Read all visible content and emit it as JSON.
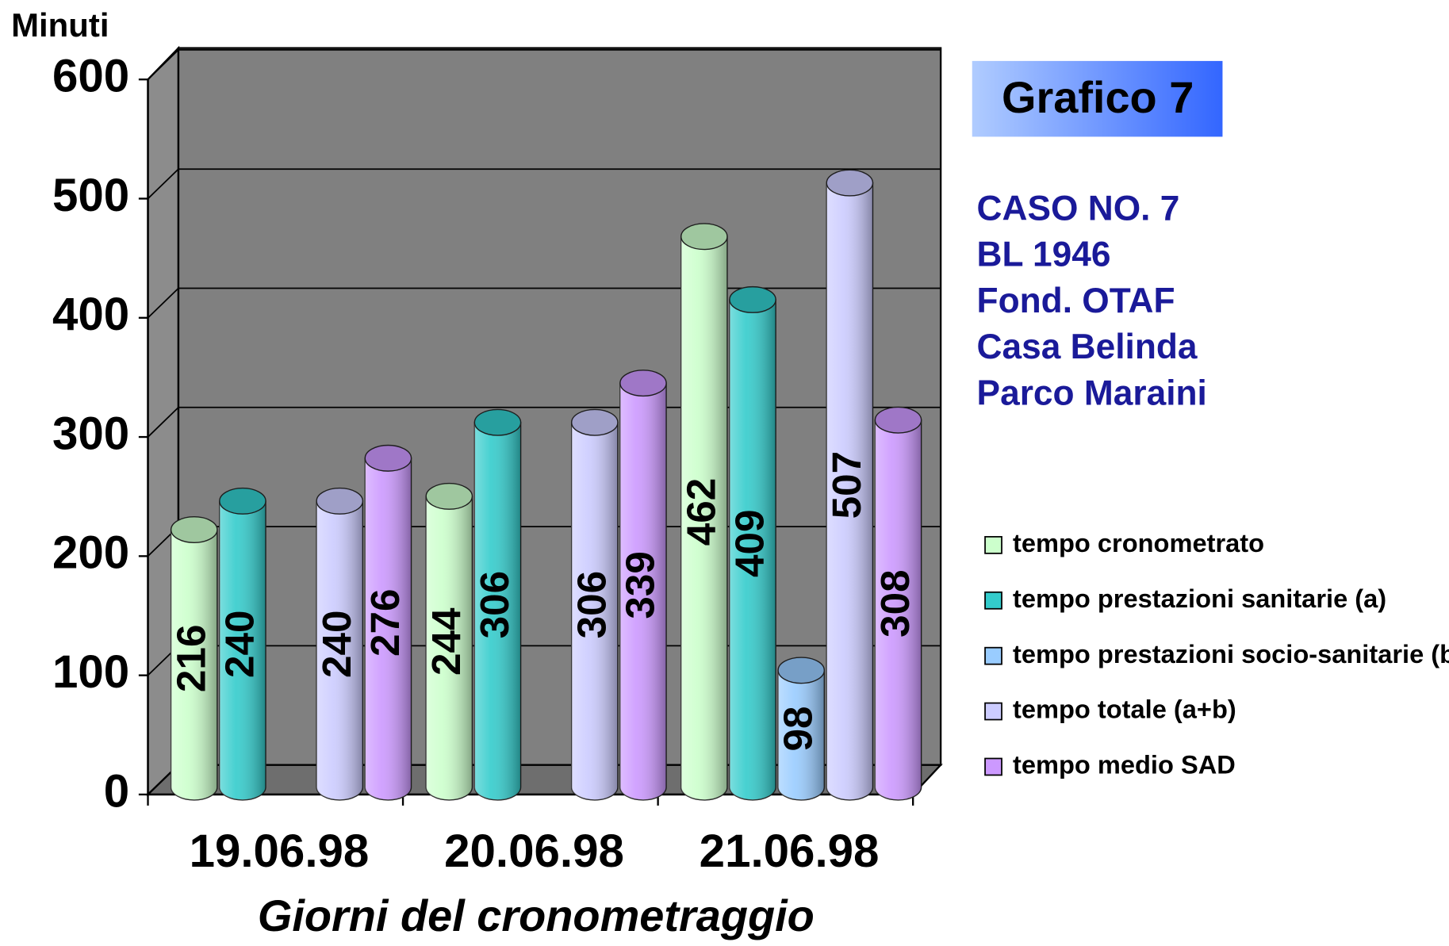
{
  "chart_data": {
    "type": "bar3d",
    "title": "Grafico 7",
    "annotations": [
      "CASO NO. 7",
      "BL 1946",
      "Fond. OTAF",
      "Casa Belinda",
      "Parco Maraini"
    ],
    "y_axis_label": "Minuti",
    "x_axis_label": "Giorni del cronometraggio",
    "categories": [
      "19.06.98",
      "20.06.98",
      "21.06.98"
    ],
    "series": [
      {
        "name": "tempo cronometrato",
        "color": "#ccffcc",
        "values": [
          216,
          244,
          462
        ]
      },
      {
        "name": "tempo prestazioni sanitarie (a)",
        "color": "#33cccc",
        "values": [
          240,
          306,
          409
        ]
      },
      {
        "name": "tempo prestazioni socio-sanitarie (b)",
        "color": "#99ccff",
        "values": [
          null,
          null,
          98
        ]
      },
      {
        "name": "tempo totale (a+b)",
        "color": "#ccccff",
        "values": [
          240,
          306,
          507
        ]
      },
      {
        "name": "tempo medio SAD",
        "color": "#cc99ff",
        "values": [
          276,
          339,
          308
        ]
      }
    ],
    "ylim": [
      0,
      600
    ],
    "yticks": [
      0,
      100,
      200,
      300,
      400,
      500,
      600
    ],
    "grid": true
  }
}
